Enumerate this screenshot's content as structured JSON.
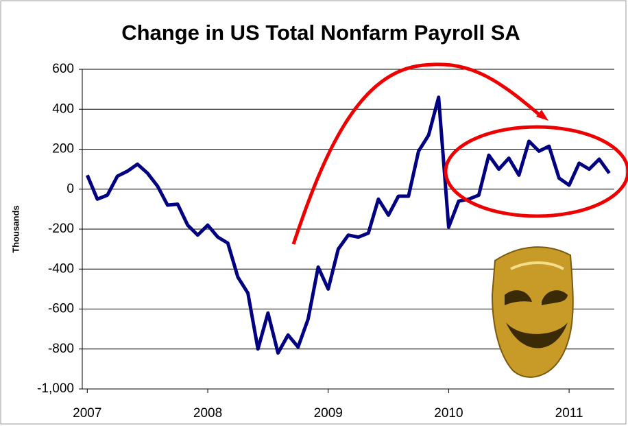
{
  "chart_data": {
    "type": "line",
    "title": "Change in US Total Nonfarm Payroll SA",
    "y_label": "Thousands",
    "categories": [
      "2007",
      null,
      null,
      null,
      null,
      null,
      null,
      null,
      null,
      null,
      null,
      null,
      "2008",
      null,
      null,
      null,
      null,
      null,
      null,
      null,
      null,
      null,
      null,
      null,
      "2009",
      null,
      null,
      null,
      null,
      null,
      null,
      null,
      null,
      null,
      null,
      null,
      "2010",
      null,
      null,
      null,
      null,
      null,
      null,
      null,
      null,
      null,
      null,
      null,
      "2011",
      null,
      null,
      null,
      null
    ],
    "values": [
      70,
      -50,
      -30,
      65,
      90,
      125,
      80,
      15,
      -80,
      -75,
      -180,
      -230,
      -180,
      -240,
      -270,
      -440,
      -520,
      -800,
      -620,
      -820,
      -730,
      -790,
      -650,
      -390,
      -500,
      -300,
      -230,
      -240,
      -220,
      -50,
      -130,
      -35,
      -35,
      190,
      270,
      460,
      -190,
      -60,
      -50,
      -30,
      170,
      100,
      155,
      70,
      240,
      190,
      215,
      55,
      20,
      130,
      100,
      150,
      80
    ],
    "color": "#000080",
    "ylim": [
      -1000,
      600
    ],
    "yticks": [
      {
        "value": -1000,
        "label": "-1,000"
      },
      -800,
      -600,
      -400,
      -200,
      0,
      200,
      400,
      600
    ],
    "grid": true
  }
}
